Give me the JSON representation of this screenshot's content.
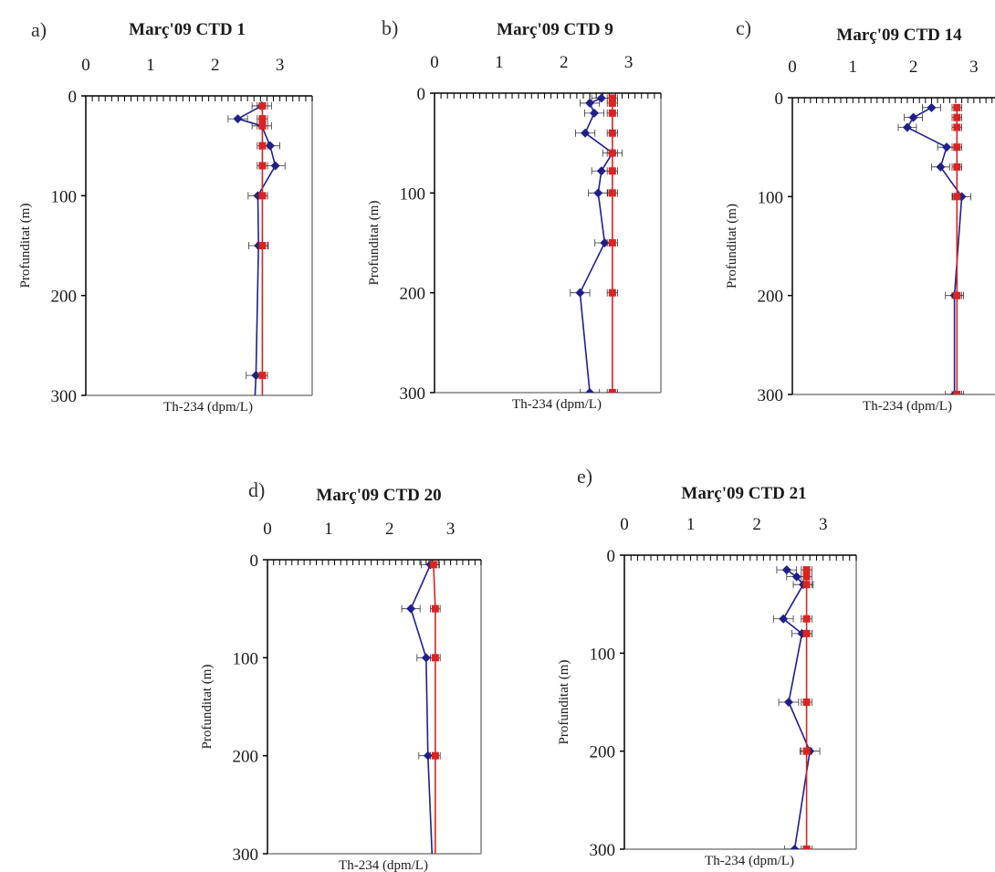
{
  "colors": {
    "th234": "#1f1f8c",
    "u238": "#dd2222",
    "frame": "#808080",
    "axis": "#000000",
    "errorbar": "#333333"
  },
  "chart_data": [
    {
      "type": "line",
      "panel_label": "a)",
      "title": "Març'09 CTD 1",
      "xlabel": "Th-234 (dpm/L)",
      "ylabel": "Profunditat (m)",
      "xlim": [
        0,
        3.5
      ],
      "ylim": [
        300,
        0
      ],
      "x_ticks": [
        0,
        1,
        2,
        3
      ],
      "y_ticks": [
        0,
        100,
        200,
        300
      ],
      "y_reversed": true,
      "x_axis_position": "top",
      "series": [
        {
          "marker": "diamond",
          "color": "#1f1f8c",
          "points": [
            [
              2.72,
              10
            ],
            [
              2.35,
              23
            ],
            [
              2.72,
              30
            ],
            [
              2.85,
              50
            ],
            [
              2.93,
              70
            ],
            [
              2.66,
              100
            ],
            [
              2.67,
              150
            ],
            [
              2.63,
              280
            ],
            [
              2.61,
              310
            ]
          ],
          "x_err": 0.15
        },
        {
          "marker": "square",
          "color": "#dd2222",
          "points": [
            [
              2.73,
              10
            ],
            [
              2.73,
              23
            ],
            [
              2.73,
              30
            ],
            [
              2.73,
              50
            ],
            [
              2.73,
              70
            ],
            [
              2.73,
              100
            ],
            [
              2.73,
              150
            ],
            [
              2.73,
              280
            ],
            [
              2.73,
              310
            ]
          ],
          "x_err": 0.08
        }
      ]
    },
    {
      "type": "line",
      "panel_label": "b)",
      "title": "Març'09 CTD 9",
      "xlabel": "Th-234 (dpm/L)",
      "ylabel": "Profunditat (m)",
      "xlim": [
        0,
        3.5
      ],
      "ylim": [
        300,
        0
      ],
      "x_ticks": [
        0,
        1,
        2,
        3
      ],
      "y_ticks": [
        0,
        100,
        200,
        300
      ],
      "y_reversed": true,
      "x_axis_position": "top",
      "series": [
        {
          "marker": "diamond",
          "color": "#1f1f8c",
          "points": [
            [
              2.58,
              5
            ],
            [
              2.4,
              10
            ],
            [
              2.47,
              20
            ],
            [
              2.33,
              40
            ],
            [
              2.75,
              60
            ],
            [
              2.58,
              78
            ],
            [
              2.53,
              100
            ],
            [
              2.63,
              150
            ],
            [
              2.25,
              200
            ],
            [
              2.4,
              300
            ]
          ],
          "x_err": 0.15
        },
        {
          "marker": "square",
          "color": "#dd2222",
          "points": [
            [
              2.75,
              5
            ],
            [
              2.75,
              10
            ],
            [
              2.75,
              20
            ],
            [
              2.75,
              40
            ],
            [
              2.75,
              60
            ],
            [
              2.75,
              78
            ],
            [
              2.75,
              100
            ],
            [
              2.75,
              150
            ],
            [
              2.75,
              200
            ],
            [
              2.75,
              300
            ]
          ],
          "x_err": 0.08
        }
      ]
    },
    {
      "type": "line",
      "panel_label": "c)",
      "title": "Març'09 CTD 14",
      "xlabel": "Th-234 (dpm/L)",
      "ylabel": "Profunditat (m)",
      "xlim": [
        0,
        3.5
      ],
      "ylim": [
        300,
        0
      ],
      "x_ticks": [
        0,
        1,
        2,
        3
      ],
      "y_ticks": [
        0,
        100,
        200,
        300
      ],
      "y_reversed": true,
      "x_axis_position": "top",
      "series": [
        {
          "marker": "diamond",
          "color": "#1f1f8c",
          "points": [
            [
              2.3,
              10
            ],
            [
              2.0,
              20
            ],
            [
              1.9,
              30
            ],
            [
              2.55,
              50
            ],
            [
              2.45,
              70
            ],
            [
              2.8,
              100
            ],
            [
              2.68,
              200
            ],
            [
              2.68,
              300
            ]
          ],
          "x_err": 0.15
        },
        {
          "marker": "square",
          "color": "#dd2222",
          "points": [
            [
              2.72,
              10
            ],
            [
              2.72,
              20
            ],
            [
              2.72,
              30
            ],
            [
              2.72,
              50
            ],
            [
              2.72,
              70
            ],
            [
              2.72,
              100
            ],
            [
              2.72,
              200
            ],
            [
              2.72,
              300
            ]
          ],
          "x_err": 0.08
        }
      ]
    },
    {
      "type": "line",
      "panel_label": "d)",
      "title": "Març'09 CTD 20",
      "xlabel": "Th-234 (dpm/L)",
      "ylabel": "Profunditat (m)",
      "xlim": [
        0,
        3.5
      ],
      "ylim": [
        300,
        0
      ],
      "x_ticks": [
        0,
        1,
        2,
        3
      ],
      "y_ticks": [
        0,
        100,
        200,
        300
      ],
      "y_reversed": true,
      "x_axis_position": "top",
      "series": [
        {
          "marker": "diamond",
          "color": "#1f1f8c",
          "points": [
            [
              2.67,
              5
            ],
            [
              2.35,
              50
            ],
            [
              2.6,
              100
            ],
            [
              2.63,
              200
            ],
            [
              2.7,
              305
            ]
          ],
          "x_err": 0.15
        },
        {
          "marker": "square",
          "color": "#dd2222",
          "points": [
            [
              2.72,
              5
            ],
            [
              2.75,
              50
            ],
            [
              2.75,
              100
            ],
            [
              2.75,
              200
            ],
            [
              2.75,
              305
            ]
          ],
          "x_err": 0.08
        }
      ]
    },
    {
      "type": "line",
      "panel_label": "e)",
      "title": "Març'09 CTD 21",
      "xlabel": "Th-234 (dpm/L)",
      "ylabel": "Profunditat (m)",
      "xlim": [
        0,
        3.5
      ],
      "ylim": [
        300,
        0
      ],
      "x_ticks": [
        0,
        1,
        2,
        3
      ],
      "y_ticks": [
        0,
        100,
        200,
        300
      ],
      "y_reversed": true,
      "x_axis_position": "top",
      "series": [
        {
          "marker": "diamond",
          "color": "#1f1f8c",
          "points": [
            [
              2.45,
              15
            ],
            [
              2.6,
              22
            ],
            [
              2.7,
              30
            ],
            [
              2.4,
              65
            ],
            [
              2.68,
              80
            ],
            [
              2.48,
              150
            ],
            [
              2.8,
              200
            ],
            [
              2.57,
              300
            ]
          ],
          "x_err": 0.15
        },
        {
          "marker": "square",
          "color": "#dd2222",
          "points": [
            [
              2.75,
              15
            ],
            [
              2.75,
              22
            ],
            [
              2.75,
              30
            ],
            [
              2.75,
              65
            ],
            [
              2.75,
              80
            ],
            [
              2.75,
              150
            ],
            [
              2.75,
              200
            ],
            [
              2.75,
              300
            ]
          ],
          "x_err": 0.08
        }
      ]
    }
  ]
}
